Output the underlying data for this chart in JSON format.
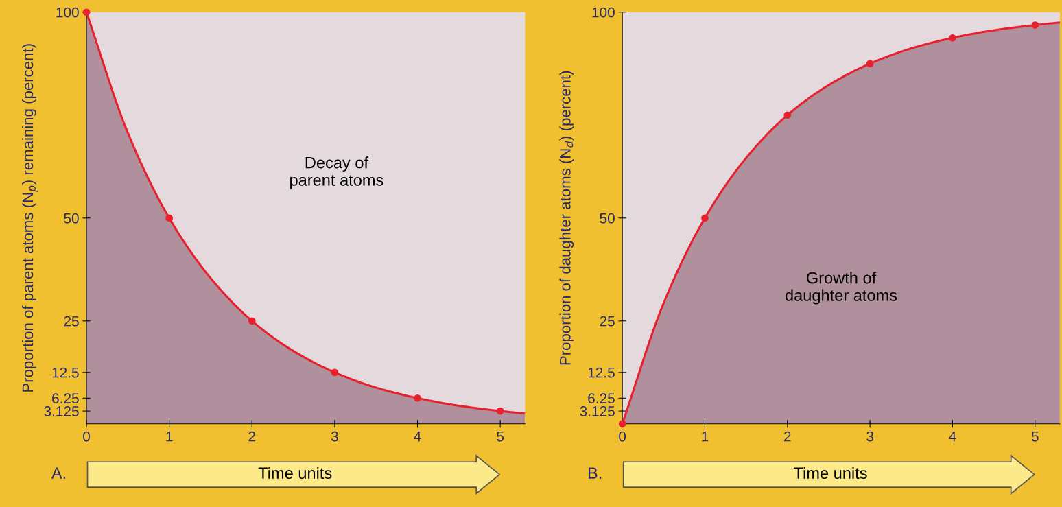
{
  "chart_data": [
    {
      "type": "area",
      "xlabel": "Time units",
      "ylabel": "Proportion of parent atoms (N$_{p}$) remaining (percent)",
      "xlim": [
        0,
        5.3
      ],
      "ylim": [
        0,
        100
      ],
      "xticks": [
        0,
        1,
        2,
        3,
        4,
        5
      ],
      "yticks": [
        3.125,
        6.25,
        12.5,
        25,
        50,
        100
      ],
      "grid": false,
      "annotations": [
        "Decay of\nparent atoms",
        "A."
      ],
      "series": [
        {
          "color": "#e8202e",
          "x": [
            0,
            0.5,
            1,
            1.5,
            2,
            2.5,
            3,
            3.5,
            4,
            4.5,
            5,
            5.3
          ],
          "values": [
            100,
            70.7,
            50,
            35.4,
            25,
            17.7,
            12.5,
            8.8,
            6.25,
            4.4,
            3.125,
            2.5
          ]
        },
        {
          "type": "scatter",
          "color": "#e8202e",
          "marker": "circle",
          "x": [
            0,
            1,
            2,
            3,
            4,
            5
          ],
          "values": [
            100,
            50,
            25,
            12.5,
            6.25,
            3.125
          ]
        }
      ]
    },
    {
      "type": "area",
      "xlabel": "Time units",
      "ylabel": "Proportion of daughter atoms (N$_{d}$) (percent)",
      "xlim": [
        0,
        5.3
      ],
      "ylim": [
        0,
        100
      ],
      "xticks": [
        0,
        1,
        2,
        3,
        4,
        5
      ],
      "yticks": [
        3.125,
        6.25,
        12.5,
        25,
        50,
        100
      ],
      "grid": false,
      "annotations": [
        "Growth of\ndaughter atoms",
        "B."
      ],
      "series": [
        {
          "color": "#e8202e",
          "x": [
            0,
            0.5,
            1,
            1.5,
            2,
            2.5,
            3,
            3.5,
            4,
            4.5,
            5,
            5.3
          ],
          "values": [
            0,
            29.3,
            50,
            64.6,
            75,
            82.3,
            87.5,
            91.2,
            93.75,
            95.6,
            96.875,
            97.5
          ]
        },
        {
          "type": "scatter",
          "color": "#e8202e",
          "marker": "circle",
          "x": [
            0,
            1,
            2,
            3,
            4,
            5
          ],
          "values": [
            0,
            50,
            75,
            87.5,
            93.75,
            96.875
          ]
        }
      ]
    }
  ]
}
